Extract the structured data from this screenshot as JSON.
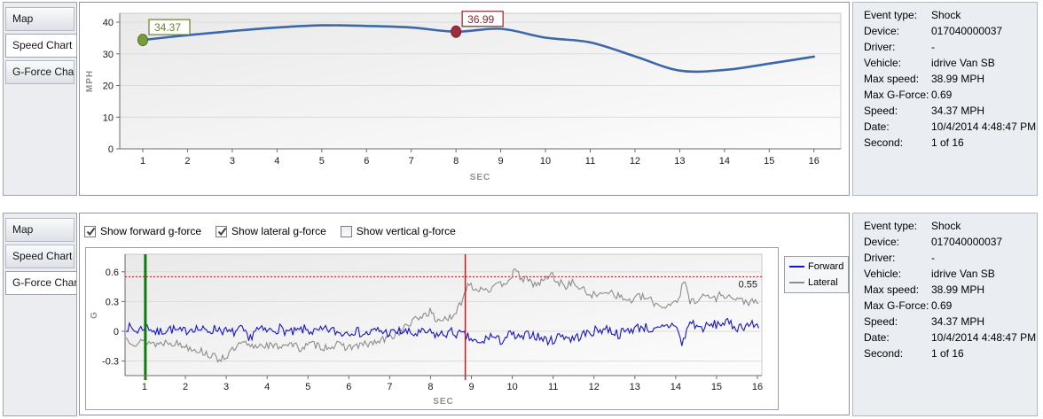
{
  "tabs": [
    "Map",
    "Speed Chart",
    "G-Force Chart"
  ],
  "panels": {
    "top": {
      "selected_tab_index": 1
    },
    "bottom": {
      "selected_tab_index": 2
    }
  },
  "info": {
    "rows": [
      {
        "label": "Event type:",
        "value": "Shock"
      },
      {
        "label": "Device:",
        "value": "017040000037"
      },
      {
        "label": "Driver:",
        "value": "-"
      },
      {
        "label": "Vehicle:",
        "value": "idrive Van SB"
      },
      {
        "label": "Max speed:",
        "value": "38.99 MPH"
      },
      {
        "label": "Max G-Force:",
        "value": "0.69"
      },
      {
        "label": "Speed:",
        "value": "34.37 MPH"
      },
      {
        "label": "Date:",
        "value": "10/4/2014 4:48:47 PM"
      },
      {
        "label": "Second:",
        "value": "1 of 16"
      }
    ]
  },
  "gforce_controls": [
    {
      "label": "Show forward g-force",
      "checked": true
    },
    {
      "label": "Show lateral g-force",
      "checked": true
    },
    {
      "label": "Show vertical g-force",
      "checked": false
    }
  ],
  "colors": {
    "speed_line": "#3a68a8",
    "forward": "#1414cc",
    "lateral": "#8c8c8c",
    "green_marker": "#7a9a3e",
    "green_marker_border": "#55731f",
    "green_label": "#697f33",
    "red_marker": "#a02d3a",
    "red_marker_border": "#7d1f2b",
    "red_label": "#8d2430",
    "vline_green": "#0c7c0c",
    "vline_red": "#d01616",
    "threshold_red": "#e00000",
    "grid": "#dbdbdb",
    "axis": "#6a6a6a",
    "axis_title": "#909090",
    "tick_text": "#1a1a1a"
  },
  "chart_data": [
    {
      "id": "speed",
      "type": "line",
      "xlabel": "SEC",
      "ylabel": "MPH",
      "x": [
        1,
        2,
        3,
        4,
        5,
        6,
        7,
        8,
        9,
        10,
        11,
        12,
        13,
        14,
        15,
        16
      ],
      "values": [
        34.37,
        35.9,
        37.2,
        38.3,
        38.99,
        38.8,
        38.3,
        36.99,
        37.9,
        35.1,
        33.6,
        29.2,
        24.7,
        24.9,
        26.9,
        29.1
      ],
      "ylim": [
        0,
        42.8
      ],
      "yticks": [
        0,
        10,
        20,
        30,
        40
      ],
      "xticks": [
        1,
        2,
        3,
        4,
        5,
        6,
        7,
        8,
        9,
        10,
        11,
        12,
        13,
        14,
        15,
        16
      ],
      "grid": "horizontal",
      "markers": [
        {
          "x": 1,
          "y": 34.37,
          "label": "34.37",
          "kind": "start"
        },
        {
          "x": 8,
          "y": 36.99,
          "label": "36.99",
          "kind": "event"
        }
      ]
    },
    {
      "id": "gforce",
      "type": "line",
      "xlabel": "SEC",
      "ylabel": "G",
      "ylim": [
        -0.45,
        0.78
      ],
      "yticks": [
        -0.3,
        0,
        0.3,
        0.6
      ],
      "xticks": [
        1,
        2,
        3,
        4,
        5,
        6,
        7,
        8,
        9,
        10,
        11,
        12,
        13,
        14,
        15,
        16
      ],
      "grid": "horizontal",
      "legend_position": "right",
      "legend": [
        {
          "name": "Forward",
          "color": "#1414cc"
        },
        {
          "name": "Lateral",
          "color": "#8c8c8c"
        }
      ],
      "threshold": {
        "y": 0.55,
        "label": "0.55"
      },
      "vlines": [
        {
          "x": 1.02,
          "color": "green",
          "width": 3
        },
        {
          "x": 8.85,
          "color": "red",
          "width": 1.5
        }
      ],
      "series": [
        {
          "name": "Forward",
          "noise": 0.05,
          "trend": [
            [
              0.55,
              0.05
            ],
            [
              0.8,
              0.0
            ],
            [
              1.05,
              0.06
            ],
            [
              1.3,
              -0.02
            ],
            [
              1.6,
              0.03
            ],
            [
              1.9,
              -0.01
            ],
            [
              2.2,
              0.04
            ],
            [
              2.5,
              0.0
            ],
            [
              2.8,
              0.03
            ],
            [
              3.1,
              -0.02
            ],
            [
              3.4,
              0.02
            ],
            [
              3.55,
              -0.1
            ],
            [
              3.7,
              0.02
            ],
            [
              4.0,
              0.0
            ],
            [
              4.3,
              0.03
            ],
            [
              4.6,
              -0.02
            ],
            [
              4.9,
              0.02
            ],
            [
              5.2,
              -0.01
            ],
            [
              5.5,
              0.02
            ],
            [
              5.8,
              -0.02
            ],
            [
              6.1,
              0.01
            ],
            [
              6.4,
              -0.03
            ],
            [
              6.7,
              0.01
            ],
            [
              7.0,
              -0.02
            ],
            [
              7.3,
              0.0
            ],
            [
              7.6,
              -0.03
            ],
            [
              7.9,
              -0.01
            ],
            [
              8.2,
              -0.04
            ],
            [
              8.5,
              -0.01
            ],
            [
              8.8,
              -0.04
            ],
            [
              9.0,
              -0.08
            ],
            [
              9.2,
              -0.14
            ],
            [
              9.45,
              -0.04
            ],
            [
              9.7,
              -0.1
            ],
            [
              9.95,
              -0.03
            ],
            [
              10.2,
              -0.08
            ],
            [
              10.45,
              -0.02
            ],
            [
              10.7,
              -0.07
            ],
            [
              10.95,
              -0.1
            ],
            [
              11.2,
              -0.03
            ],
            [
              11.45,
              -0.08
            ],
            [
              11.7,
              -0.04
            ],
            [
              12.0,
              0.0
            ],
            [
              12.3,
              0.03
            ],
            [
              12.6,
              -0.03
            ],
            [
              12.9,
              0.02
            ],
            [
              13.2,
              0.05
            ],
            [
              13.5,
              0.0
            ],
            [
              13.8,
              0.05
            ],
            [
              14.0,
              0.08
            ],
            [
              14.15,
              -0.14
            ],
            [
              14.35,
              0.1
            ],
            [
              14.6,
              0.03
            ],
            [
              14.9,
              0.06
            ],
            [
              15.2,
              0.09
            ],
            [
              15.5,
              0.04
            ],
            [
              15.8,
              0.07
            ],
            [
              16.05,
              0.05
            ]
          ]
        },
        {
          "name": "Lateral",
          "noise": 0.04,
          "trend": [
            [
              0.55,
              -0.07
            ],
            [
              0.8,
              -0.12
            ],
            [
              1.05,
              -0.1
            ],
            [
              1.3,
              -0.13
            ],
            [
              1.6,
              -0.1
            ],
            [
              1.9,
              -0.14
            ],
            [
              2.2,
              -0.17
            ],
            [
              2.5,
              -0.22
            ],
            [
              2.8,
              -0.28
            ],
            [
              3.0,
              -0.25
            ],
            [
              3.2,
              -0.18
            ],
            [
              3.4,
              -0.12
            ],
            [
              3.6,
              -0.16
            ],
            [
              3.9,
              -0.13
            ],
            [
              4.2,
              -0.16
            ],
            [
              4.5,
              -0.12
            ],
            [
              4.8,
              -0.17
            ],
            [
              5.1,
              -0.13
            ],
            [
              5.4,
              -0.16
            ],
            [
              5.7,
              -0.14
            ],
            [
              6.0,
              -0.16
            ],
            [
              6.3,
              -0.14
            ],
            [
              6.6,
              -0.12
            ],
            [
              6.9,
              -0.08
            ],
            [
              7.2,
              -0.02
            ],
            [
              7.5,
              0.08
            ],
            [
              7.8,
              0.16
            ],
            [
              8.0,
              0.2
            ],
            [
              8.15,
              0.1
            ],
            [
              8.35,
              0.14
            ],
            [
              8.55,
              0.12
            ],
            [
              8.75,
              0.3
            ],
            [
              8.95,
              0.5
            ],
            [
              9.1,
              0.42
            ],
            [
              9.3,
              0.44
            ],
            [
              9.5,
              0.42
            ],
            [
              9.7,
              0.47
            ],
            [
              9.9,
              0.52
            ],
            [
              10.05,
              0.6
            ],
            [
              10.2,
              0.55
            ],
            [
              10.4,
              0.5
            ],
            [
              10.6,
              0.47
            ],
            [
              10.8,
              0.52
            ],
            [
              10.95,
              0.58
            ],
            [
              11.1,
              0.5
            ],
            [
              11.3,
              0.46
            ],
            [
              11.5,
              0.49
            ],
            [
              11.7,
              0.42
            ],
            [
              11.9,
              0.38
            ],
            [
              12.1,
              0.35
            ],
            [
              12.3,
              0.42
            ],
            [
              12.5,
              0.38
            ],
            [
              12.7,
              0.33
            ],
            [
              12.9,
              0.31
            ],
            [
              13.1,
              0.35
            ],
            [
              13.3,
              0.33
            ],
            [
              13.5,
              0.28
            ],
            [
              13.7,
              0.25
            ],
            [
              13.9,
              0.28
            ],
            [
              14.1,
              0.35
            ],
            [
              14.2,
              0.52
            ],
            [
              14.35,
              0.3
            ],
            [
              14.55,
              0.33
            ],
            [
              14.75,
              0.36
            ],
            [
              14.95,
              0.33
            ],
            [
              15.15,
              0.38
            ],
            [
              15.35,
              0.34
            ],
            [
              15.55,
              0.31
            ],
            [
              15.75,
              0.3
            ],
            [
              16.05,
              0.28
            ]
          ]
        }
      ]
    }
  ]
}
